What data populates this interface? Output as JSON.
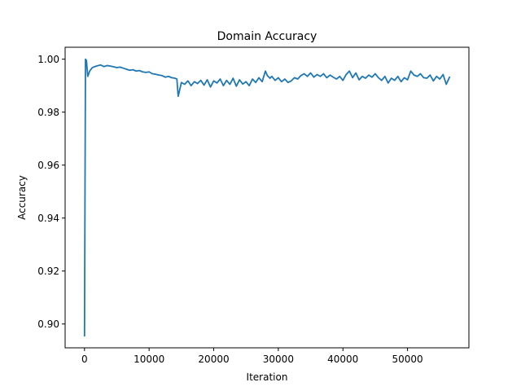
{
  "chart_data": {
    "type": "line",
    "title": "Domain Accuracy",
    "xlabel": "Iteration",
    "ylabel": "Accuracy",
    "xlim": [
      -3000,
      59500
    ],
    "ylim": [
      0.891,
      1.0045
    ],
    "xticks": [
      0,
      10000,
      20000,
      30000,
      40000,
      50000
    ],
    "xtick_labels": [
      "0",
      "10000",
      "20000",
      "30000",
      "40000",
      "50000"
    ],
    "yticks": [
      0.9,
      0.92,
      0.94,
      0.96,
      0.98,
      1.0
    ],
    "ytick_labels": [
      "0.90",
      "0.92",
      "0.94",
      "0.96",
      "0.98",
      "1.00"
    ],
    "grid": false,
    "series": [
      {
        "color": "#1f77b4",
        "x": [
          0,
          150,
          300,
          500,
          800,
          1200,
          1600,
          2000,
          2500,
          3000,
          3500,
          4000,
          4500,
          5000,
          5500,
          6000,
          6500,
          7000,
          7500,
          8000,
          8500,
          9000,
          9500,
          10000,
          10500,
          11000,
          11500,
          12000,
          12500,
          13000,
          13500,
          14000,
          14300,
          14500,
          15000,
          15500,
          16000,
          16500,
          17000,
          17500,
          18000,
          18500,
          19000,
          19500,
          20000,
          20500,
          21000,
          21500,
          22000,
          22500,
          23000,
          23500,
          24000,
          24500,
          25000,
          25500,
          26000,
          26500,
          27000,
          27500,
          28000,
          28300,
          28700,
          29000,
          29500,
          30000,
          30500,
          31000,
          31500,
          32000,
          32500,
          33000,
          33500,
          34000,
          34500,
          35000,
          35500,
          36000,
          36500,
          37000,
          37500,
          38000,
          38500,
          39000,
          39500,
          40000,
          40500,
          41000,
          41500,
          42000,
          42500,
          43000,
          43500,
          44000,
          44500,
          45000,
          45500,
          46000,
          46500,
          47000,
          47500,
          48000,
          48500,
          49000,
          49500,
          50000,
          50500,
          51000,
          51500,
          52000,
          52500,
          53000,
          53500,
          54000,
          54500,
          55000,
          55500,
          56000,
          56500
        ],
        "y": [
          0.8955,
          1.0,
          0.9995,
          0.9935,
          0.9955,
          0.9968,
          0.9972,
          0.9975,
          0.9978,
          0.9972,
          0.9976,
          0.9974,
          0.9971,
          0.9968,
          0.997,
          0.9966,
          0.9962,
          0.9958,
          0.996,
          0.9955,
          0.9957,
          0.9952,
          0.995,
          0.9952,
          0.9945,
          0.9943,
          0.994,
          0.9938,
          0.9932,
          0.9935,
          0.993,
          0.9928,
          0.9925,
          0.986,
          0.9912,
          0.9905,
          0.9918,
          0.99,
          0.9915,
          0.9908,
          0.992,
          0.9902,
          0.9922,
          0.9895,
          0.9918,
          0.991,
          0.9925,
          0.99,
          0.992,
          0.9905,
          0.9928,
          0.9898,
          0.9922,
          0.9906,
          0.9915,
          0.99,
          0.9925,
          0.9912,
          0.993,
          0.9915,
          0.9955,
          0.9938,
          0.9928,
          0.9935,
          0.992,
          0.993,
          0.9915,
          0.9925,
          0.9912,
          0.9918,
          0.993,
          0.9925,
          0.9938,
          0.9945,
          0.9935,
          0.9948,
          0.9932,
          0.9942,
          0.9935,
          0.9945,
          0.993,
          0.994,
          0.9932,
          0.9925,
          0.9935,
          0.992,
          0.9942,
          0.9955,
          0.993,
          0.9948,
          0.9922,
          0.9935,
          0.9928,
          0.994,
          0.9932,
          0.9945,
          0.993,
          0.992,
          0.9935,
          0.991,
          0.9928,
          0.992,
          0.9935,
          0.9915,
          0.993,
          0.9922,
          0.9955,
          0.994,
          0.9935,
          0.9945,
          0.993,
          0.9928,
          0.994,
          0.9918,
          0.9935,
          0.9925,
          0.9942,
          0.9905,
          0.9932
        ]
      }
    ]
  }
}
